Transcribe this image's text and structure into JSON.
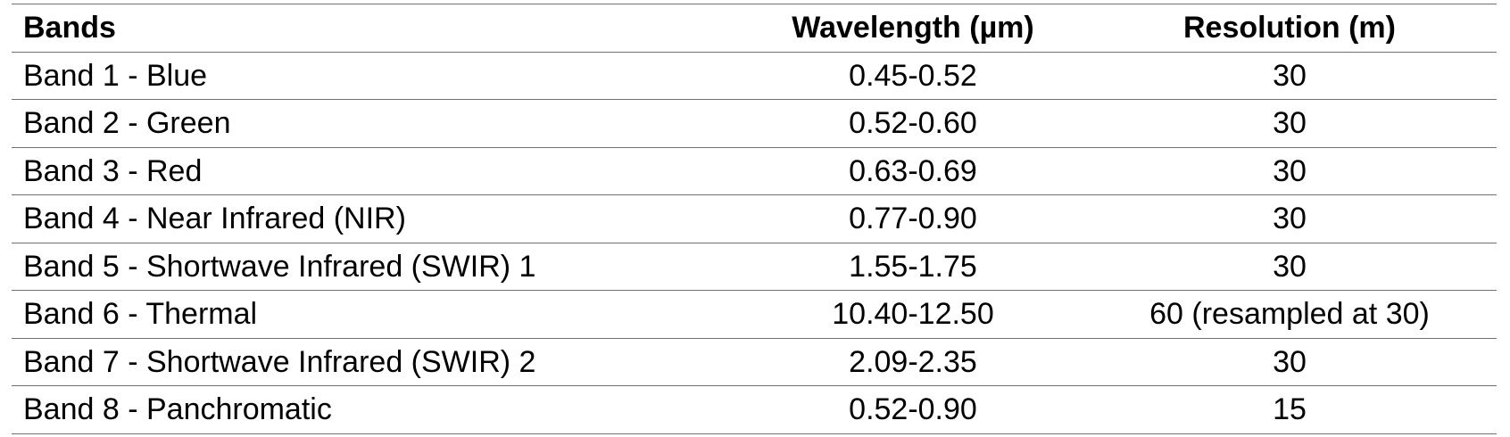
{
  "table": {
    "headers": {
      "bands": "Bands",
      "wavelength": "Wavelength (µm)",
      "resolution": "Resolution (m)"
    },
    "rows": [
      {
        "band": "Band 1 - Blue",
        "wavelength": "0.45-0.52",
        "resolution": "30"
      },
      {
        "band": "Band 2 - Green",
        "wavelength": "0.52-0.60",
        "resolution": "30"
      },
      {
        "band": "Band 3 - Red",
        "wavelength": "0.63-0.69",
        "resolution": "30"
      },
      {
        "band": "Band 4 - Near Infrared (NIR)",
        "wavelength": "0.77-0.90",
        "resolution": "30"
      },
      {
        "band": "Band 5 - Shortwave Infrared (SWIR) 1",
        "wavelength": "1.55-1.75",
        "resolution": "30"
      },
      {
        "band": "Band 6 - Thermal",
        "wavelength": "10.40-12.50",
        "resolution": "60 (resampled at 30)"
      },
      {
        "band": "Band 7 - Shortwave Infrared (SWIR) 2",
        "wavelength": "2.09-2.35",
        "resolution": "30"
      },
      {
        "band": "Band 8 - Panchromatic",
        "wavelength": "0.52-0.90",
        "resolution": "15"
      }
    ]
  }
}
